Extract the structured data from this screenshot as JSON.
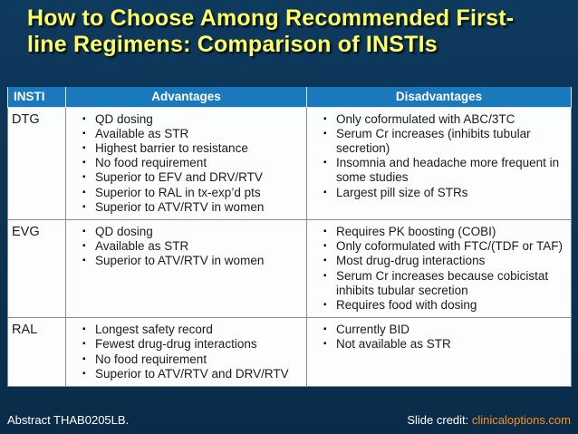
{
  "slide": {
    "title": "How to Choose Among Recommended First-line Regimens: Comparison of INSTIs",
    "footer_left": "Abstract THAB0205LB.",
    "footer_right_label": "Slide credit: ",
    "footer_right_link": "clinicaloptions.com"
  },
  "table": {
    "bullet_icon": "▪",
    "headers": [
      "INSTI",
      "Advantages",
      "Disadvantages"
    ],
    "rows": [
      {
        "insti": "DTG",
        "advantages": [
          "QD dosing",
          "Available as STR",
          "Highest barrier to resistance",
          "No food requirement",
          "Superior to EFV and DRV/RTV",
          "Superior to RAL in tx-exp’d pts",
          "Superior to ATV/RTV in women"
        ],
        "disadvantages": [
          "Only coformulated with ABC/3TC",
          "Serum Cr increases (inhibits tubular secretion)",
          "Insomnia and headache more frequent in some studies",
          "Largest pill size of STRs"
        ]
      },
      {
        "insti": "EVG",
        "advantages": [
          "QD dosing",
          "Available as STR",
          "Superior to ATV/RTV in women"
        ],
        "disadvantages": [
          "Requires PK boosting (COBI)",
          "Only coformulated with FTC/(TDF or TAF)",
          "Most drug-drug interactions",
          "Serum Cr increases because cobicistat inhibits tubular secretion",
          "Requires food with dosing"
        ]
      },
      {
        "insti": "RAL",
        "advantages": [
          "Longest safety record",
          "Fewest drug-drug interactions",
          "No food requirement",
          "Superior to ATV/RTV and DRV/RTV"
        ],
        "disadvantages": [
          "Currently BID",
          "Not available as STR"
        ]
      }
    ]
  },
  "colors": {
    "bg_navy": "#0e3a5e",
    "bg_navy_dark": "#0a2c49",
    "header_blue": "#1a78bc",
    "title_yellow": "#ffff66",
    "link_orange": "#f7941d",
    "table_bg": "#fcfdfe",
    "border_gray": "#8c8c8c",
    "text_dark": "#1b1b1b"
  }
}
